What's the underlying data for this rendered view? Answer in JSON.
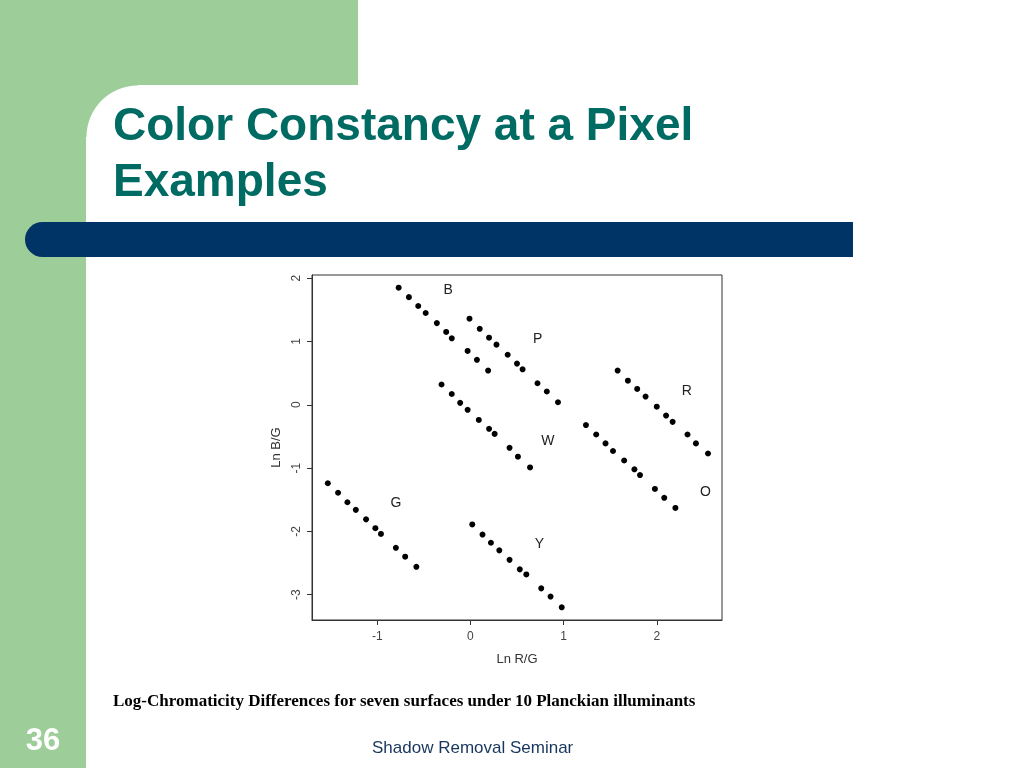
{
  "chart_data": {
    "type": "scatter",
    "title": "Color Constancy at a Pixel Examples",
    "xlabel": "Ln R/G",
    "ylabel": "Ln B/G",
    "xlim": [
      -1.7,
      2.7
    ],
    "ylim": [
      -3.4,
      2.05
    ],
    "xticks": [
      -1,
      0,
      1,
      2
    ],
    "yticks": [
      -3,
      -2,
      -1,
      0,
      1,
      2
    ],
    "grid": false,
    "legend": false,
    "marker": "circle",
    "series": [
      {
        "name": "B",
        "color": "#000000",
        "x": [
          -0.77,
          -0.66,
          -0.56,
          -0.48,
          -0.36,
          -0.26,
          -0.2,
          -0.03,
          0.07,
          0.19
        ],
        "values": [
          1.85,
          1.7,
          1.56,
          1.45,
          1.29,
          1.15,
          1.05,
          0.85,
          0.71,
          0.54
        ]
      },
      {
        "name": "P",
        "color": "#000000",
        "x": [
          -0.01,
          0.1,
          0.2,
          0.28,
          0.4,
          0.5,
          0.56,
          0.72,
          0.82,
          0.94
        ],
        "values": [
          1.36,
          1.2,
          1.06,
          0.95,
          0.79,
          0.65,
          0.56,
          0.34,
          0.21,
          0.04
        ]
      },
      {
        "name": "W",
        "color": "#000000",
        "x": [
          -0.31,
          -0.2,
          -0.11,
          -0.03,
          0.09,
          0.2,
          0.26,
          0.42,
          0.51,
          0.64
        ],
        "values": [
          0.32,
          0.17,
          0.03,
          -0.08,
          -0.24,
          -0.38,
          -0.46,
          -0.68,
          -0.82,
          -0.99
        ]
      },
      {
        "name": "R",
        "color": "#000000",
        "x": [
          1.58,
          1.69,
          1.79,
          1.88,
          2.0,
          2.1,
          2.17,
          2.33,
          2.42,
          2.55
        ],
        "values": [
          0.54,
          0.38,
          0.25,
          0.13,
          -0.03,
          -0.17,
          -0.27,
          -0.47,
          -0.61,
          -0.77
        ]
      },
      {
        "name": "O",
        "color": "#000000",
        "x": [
          1.24,
          1.35,
          1.45,
          1.53,
          1.65,
          1.76,
          1.82,
          1.98,
          2.08,
          2.2
        ],
        "values": [
          -0.32,
          -0.47,
          -0.61,
          -0.73,
          -0.88,
          -1.02,
          -1.11,
          -1.33,
          -1.47,
          -1.63
        ]
      },
      {
        "name": "G",
        "color": "#000000",
        "x": [
          -1.53,
          -1.42,
          -1.32,
          -1.23,
          -1.12,
          -1.02,
          -0.96,
          -0.8,
          -0.7,
          -0.58
        ],
        "values": [
          -1.24,
          -1.39,
          -1.54,
          -1.66,
          -1.81,
          -1.95,
          -2.04,
          -2.26,
          -2.4,
          -2.56
        ]
      },
      {
        "name": "Y",
        "color": "#000000",
        "x": [
          0.02,
          0.13,
          0.22,
          0.31,
          0.42,
          0.53,
          0.6,
          0.76,
          0.86,
          0.98
        ],
        "values": [
          -1.89,
          -2.05,
          -2.18,
          -2.3,
          -2.45,
          -2.6,
          -2.68,
          -2.9,
          -3.03,
          -3.2
        ]
      }
    ],
    "annotations": [
      "Log-Chromaticity Differences for seven surfaces under 10 Planckian illuminants",
      "36",
      "Shadow Removal Seminar"
    ]
  }
}
